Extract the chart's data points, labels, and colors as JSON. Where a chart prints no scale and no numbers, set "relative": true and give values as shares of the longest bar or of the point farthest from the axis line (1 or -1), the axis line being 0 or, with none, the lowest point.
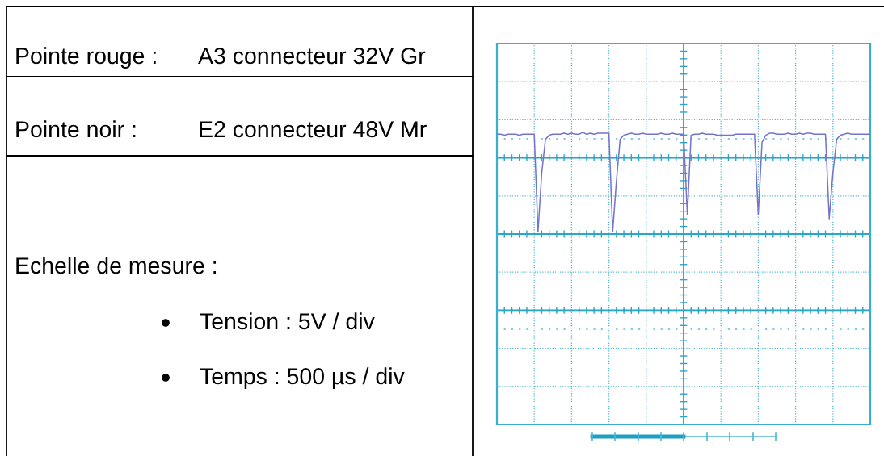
{
  "chart_data": {
    "type": "line",
    "relative": true,
    "tick_labels": false,
    "grid": true,
    "color": "#7474cc",
    "annotations": [
      "Pointe rouge :",
      "A3 connecteur 32V Gr",
      "Pointe noir :",
      "E2 connecteur 48V Mr",
      "Echelle de mesure :",
      "Tension : 5V / div",
      "Temps : 500 µs / div"
    ],
    "categories": [
      null,
      null,
      null,
      null,
      null,
      null,
      null,
      null,
      null,
      null,
      null,
      null,
      null,
      null,
      null,
      null,
      null,
      null,
      null,
      null,
      null,
      null,
      null,
      null,
      null,
      null,
      null,
      null,
      null,
      null,
      null,
      null,
      null,
      null,
      null,
      null,
      null,
      null,
      null,
      null,
      null,
      null,
      null,
      null,
      null,
      null,
      null,
      null,
      null,
      null,
      null,
      null,
      null,
      null,
      null,
      null,
      null,
      null,
      null,
      null,
      null,
      null,
      null,
      null,
      null,
      null,
      null,
      null,
      null,
      null,
      null,
      null,
      null,
      null,
      null,
      null,
      null,
      null,
      null,
      null,
      null,
      null,
      null,
      null,
      null,
      null,
      null,
      null,
      null,
      null,
      null,
      null,
      null,
      null,
      null,
      null,
      null,
      null,
      null,
      null,
      null
    ],
    "values": [
      0.98,
      0.98,
      0.97,
      0.98,
      0.98,
      0.98,
      0.97,
      0.98,
      0.98,
      0.98,
      0.98,
      0.02,
      0.6,
      0.93,
      0.97,
      0.98,
      0.98,
      0.98,
      0.99,
      0.98,
      0.99,
      0.98,
      0.98,
      1.0,
      0.98,
      0.99,
      0.98,
      0.99,
      0.99,
      0.99,
      0.99,
      0.02,
      0.52,
      0.93,
      0.97,
      0.98,
      0.99,
      0.98,
      0.98,
      0.99,
      0.98,
      0.98,
      0.98,
      0.98,
      0.99,
      0.98,
      0.98,
      0.99,
      0.98,
      0.98,
      0.98,
      0.19,
      0.97,
      0.98,
      0.98,
      0.99,
      0.98,
      0.98,
      0.98,
      0.97,
      0.97,
      0.97,
      0.97,
      0.97,
      0.98,
      0.98,
      0.98,
      0.98,
      0.98,
      0.98,
      0.19,
      0.9,
      0.97,
      0.99,
      0.99,
      0.98,
      0.98,
      0.98,
      0.99,
      0.98,
      0.98,
      0.99,
      0.98,
      0.99,
      0.99,
      0.98,
      0.98,
      0.98,
      0.98,
      0.15,
      0.6,
      0.93,
      0.97,
      0.98,
      0.99,
      0.98,
      0.98,
      0.98,
      0.98,
      0.98,
      0.98
    ]
  }
}
